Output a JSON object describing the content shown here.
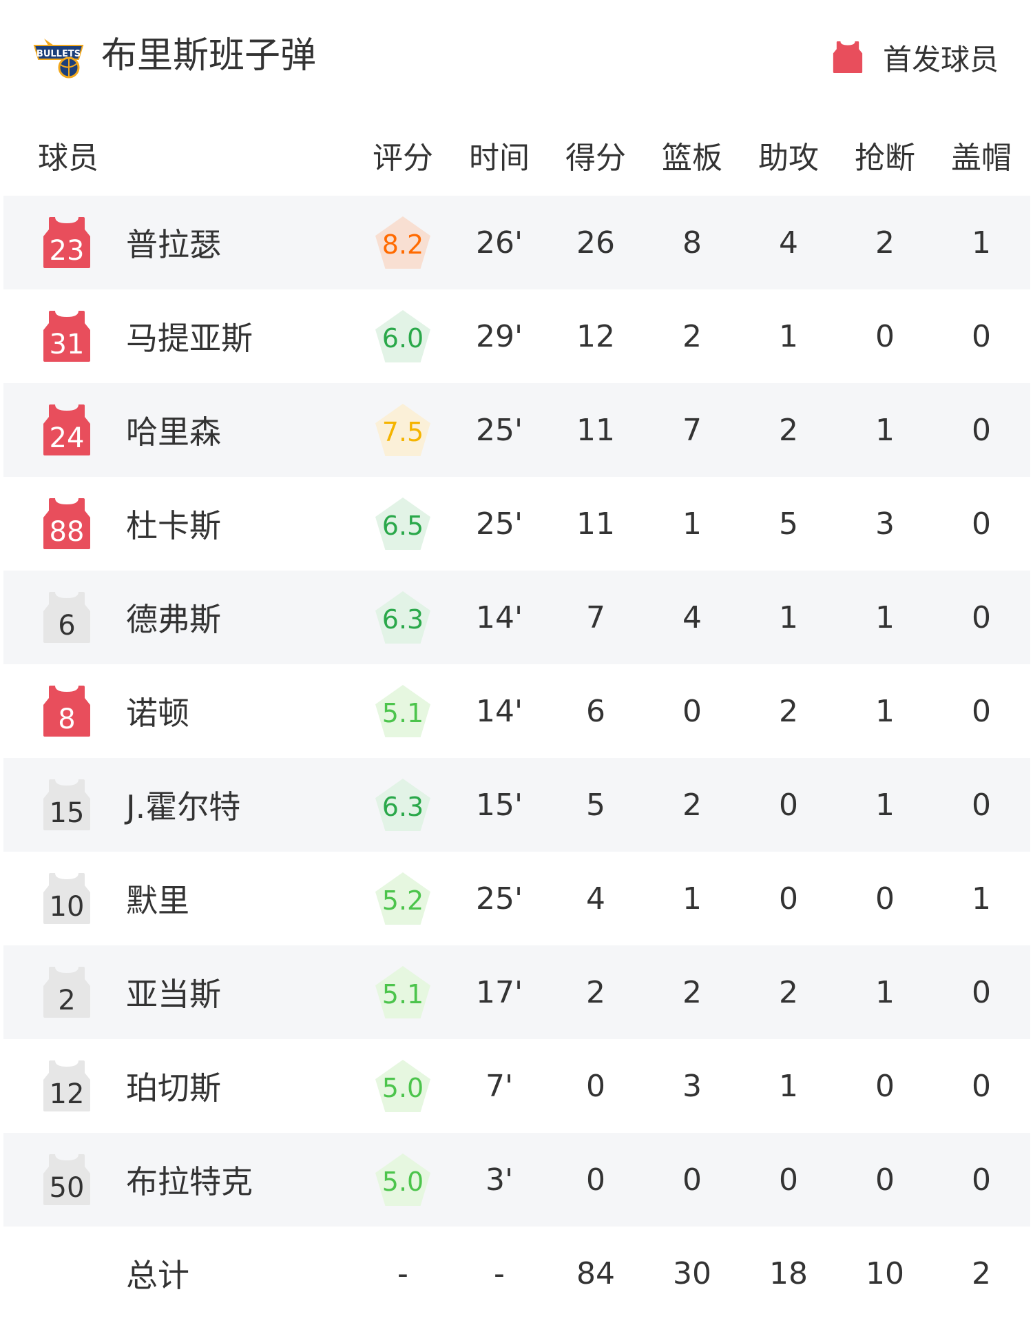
{
  "team": {
    "name": "布里斯班子弹",
    "logo_text": "BRISBANE BULLETS"
  },
  "legend": {
    "label": "首发球员",
    "icon": "jersey-icon",
    "starter_color": "#e84e5c",
    "bench_color": "#e6e6e6"
  },
  "columns": {
    "player": "球员",
    "rating": "评分",
    "time": "时间",
    "points": "得分",
    "rebounds": "篮板",
    "assists": "助攻",
    "steals": "抢断",
    "blocks": "盖帽"
  },
  "players": [
    {
      "number": "23",
      "starter": true,
      "name": "普拉瑟",
      "rating": "8.2",
      "time": "26'",
      "points": "26",
      "rebounds": "8",
      "assists": "4",
      "steals": "2",
      "blocks": "1"
    },
    {
      "number": "31",
      "starter": true,
      "name": "马提亚斯",
      "rating": "6.0",
      "time": "29'",
      "points": "12",
      "rebounds": "2",
      "assists": "1",
      "steals": "0",
      "blocks": "0"
    },
    {
      "number": "24",
      "starter": true,
      "name": "哈里森",
      "rating": "7.5",
      "time": "25'",
      "points": "11",
      "rebounds": "7",
      "assists": "2",
      "steals": "1",
      "blocks": "0"
    },
    {
      "number": "88",
      "starter": true,
      "name": "杜卡斯",
      "rating": "6.5",
      "time": "25'",
      "points": "11",
      "rebounds": "1",
      "assists": "5",
      "steals": "3",
      "blocks": "0"
    },
    {
      "number": "6",
      "starter": false,
      "name": "德弗斯",
      "rating": "6.3",
      "time": "14'",
      "points": "7",
      "rebounds": "4",
      "assists": "1",
      "steals": "1",
      "blocks": "0"
    },
    {
      "number": "8",
      "starter": true,
      "name": "诺顿",
      "rating": "5.1",
      "time": "14'",
      "points": "6",
      "rebounds": "0",
      "assists": "2",
      "steals": "1",
      "blocks": "0"
    },
    {
      "number": "15",
      "starter": false,
      "name": "J.霍尔特",
      "rating": "6.3",
      "time": "15'",
      "points": "5",
      "rebounds": "2",
      "assists": "0",
      "steals": "1",
      "blocks": "0"
    },
    {
      "number": "10",
      "starter": false,
      "name": "默里",
      "rating": "5.2",
      "time": "25'",
      "points": "4",
      "rebounds": "1",
      "assists": "0",
      "steals": "0",
      "blocks": "1"
    },
    {
      "number": "2",
      "starter": false,
      "name": "亚当斯",
      "rating": "5.1",
      "time": "17'",
      "points": "2",
      "rebounds": "2",
      "assists": "2",
      "steals": "1",
      "blocks": "0"
    },
    {
      "number": "12",
      "starter": false,
      "name": "珀切斯",
      "rating": "5.0",
      "time": "7'",
      "points": "0",
      "rebounds": "3",
      "assists": "1",
      "steals": "0",
      "blocks": "0"
    },
    {
      "number": "50",
      "starter": false,
      "name": "布拉特克",
      "rating": "5.0",
      "time": "3'",
      "points": "0",
      "rebounds": "0",
      "assists": "0",
      "steals": "0",
      "blocks": "0"
    }
  ],
  "totals": {
    "label": "总计",
    "rating": "-",
    "time": "-",
    "points": "84",
    "rebounds": "30",
    "assists": "18",
    "steals": "10",
    "blocks": "2"
  },
  "rating_colors": {
    "high": {
      "text": "#ff6a00",
      "bg": "#f8dfd2"
    },
    "good": {
      "text": "#f5b400",
      "bg": "#fbf0d8"
    },
    "mid": {
      "text": "#2aa84a",
      "bg": "#e2f3e6"
    },
    "low": {
      "text": "#4cc44c",
      "bg": "#e6f7e0"
    }
  }
}
